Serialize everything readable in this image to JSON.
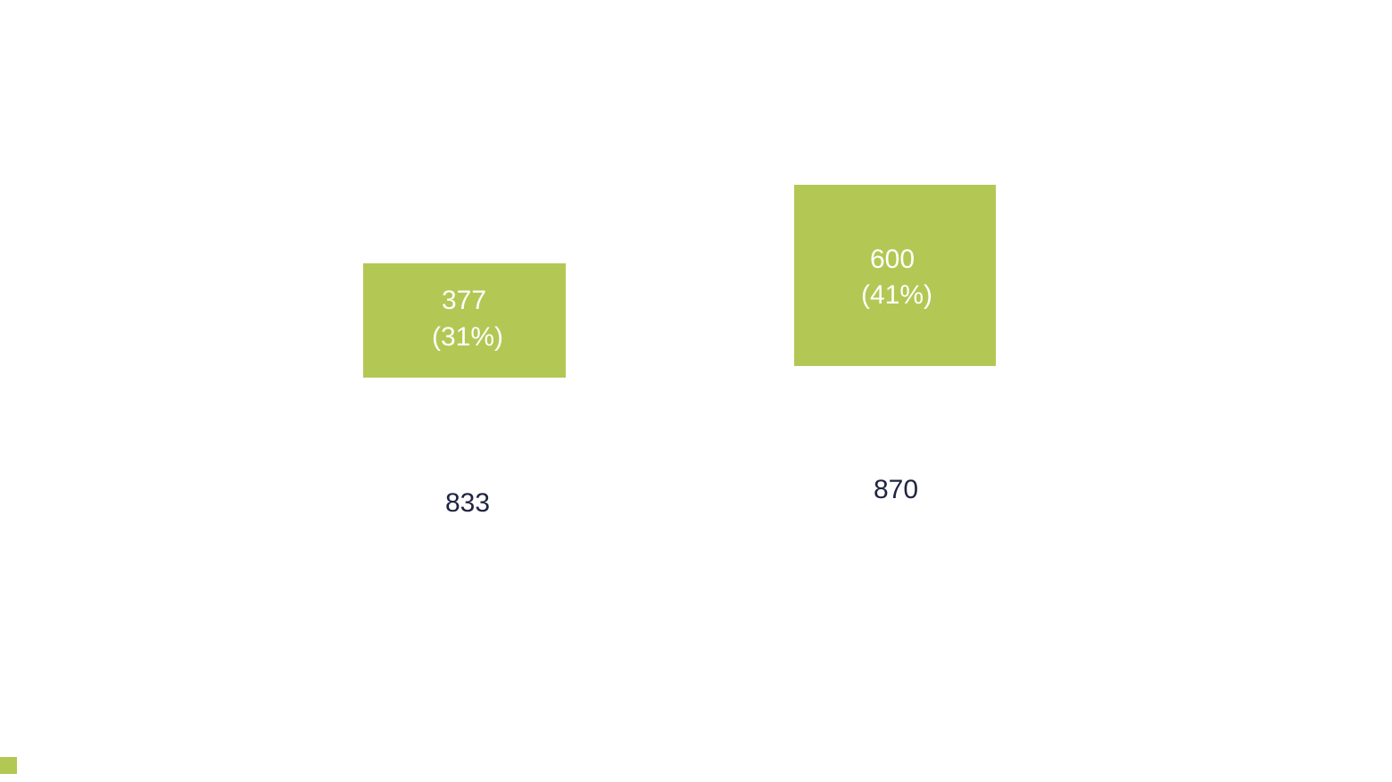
{
  "items": [
    {
      "value": "377",
      "share": "(31%)",
      "total": "833"
    },
    {
      "value": "600",
      "share": "(41%)",
      "total": "870"
    }
  ]
}
